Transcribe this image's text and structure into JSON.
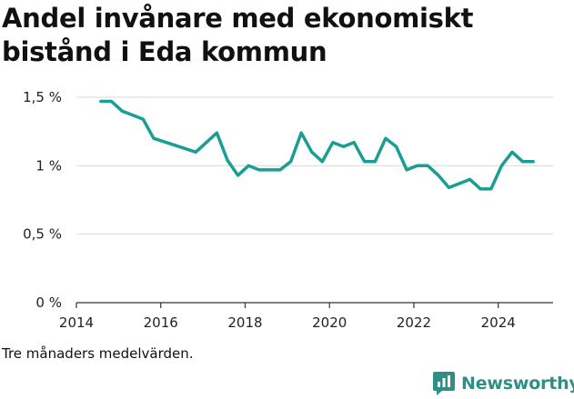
{
  "title": "Andel invånare med ekonomiskt bistånd i Eda kommun",
  "note": "Tre månaders medelvärden.",
  "brand": {
    "name": "Newsworthy",
    "color": "#2f8f86",
    "icon": "bar-chart-logo-icon"
  },
  "chart_data": {
    "type": "line",
    "title": "Andel invånare med ekonomiskt bistånd i Eda kommun",
    "xlabel": "",
    "ylabel": "",
    "xlim": [
      2014,
      2025.3
    ],
    "ylim": [
      0,
      1.5
    ],
    "x_ticks": [
      {
        "value": 2014,
        "label": "2014"
      },
      {
        "value": 2016,
        "label": "2016"
      },
      {
        "value": 2018,
        "label": "2018"
      },
      {
        "value": 2020,
        "label": "2020"
      },
      {
        "value": 2022,
        "label": "2022"
      },
      {
        "value": 2024,
        "label": "2024"
      }
    ],
    "y_ticks": [
      {
        "value": 0,
        "label": "0 %"
      },
      {
        "value": 0.5,
        "label": "0,5 %"
      },
      {
        "value": 1,
        "label": "1 %"
      },
      {
        "value": 1.5,
        "label": "1,5 %"
      }
    ],
    "grid": true,
    "color": "#1a9e94",
    "series": [
      {
        "x": [
          2014.58,
          2014.83,
          2015.08,
          2015.58,
          2015.83,
          2016.83,
          2017.33,
          2017.58,
          2017.83,
          2018.08,
          2018.33,
          2018.58,
          2018.83,
          2019.08,
          2019.33,
          2019.58,
          2019.83,
          2020.08,
          2020.33,
          2020.58,
          2020.83,
          2021.08,
          2021.33,
          2021.58,
          2021.83,
          2022.08,
          2022.33,
          2022.58,
          2022.83,
          2023.08,
          2023.33,
          2023.58,
          2023.83,
          2024.08,
          2024.33,
          2024.58,
          2024.83
        ],
        "values": [
          1.47,
          1.47,
          1.4,
          1.34,
          1.2,
          1.1,
          1.24,
          1.04,
          0.93,
          1.0,
          0.97,
          0.97,
          0.97,
          1.03,
          1.24,
          1.1,
          1.03,
          1.17,
          1.14,
          1.17,
          1.03,
          1.03,
          1.2,
          1.14,
          0.97,
          1.0,
          1.0,
          0.93,
          0.84,
          0.87,
          0.9,
          0.83,
          0.83,
          1.0,
          1.1,
          1.03,
          1.03
        ]
      }
    ]
  }
}
